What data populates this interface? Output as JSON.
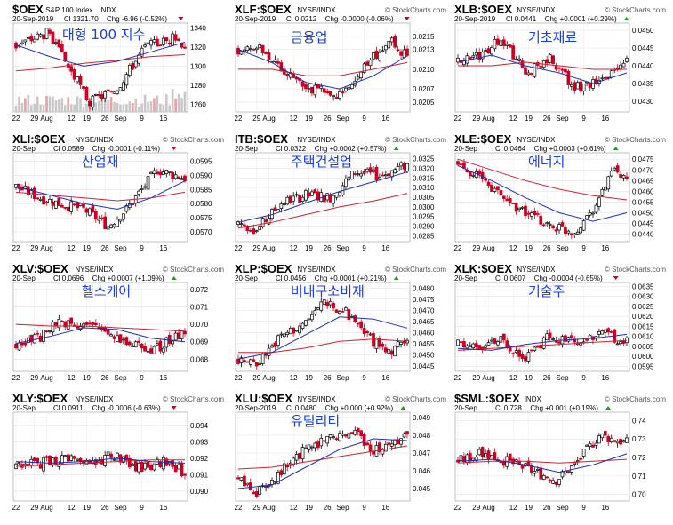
{
  "date": "20-Sep-2019",
  "date_short": "20-Sep",
  "watermark": "© StockCharts.com",
  "x_labels": [
    "22",
    "29",
    "Aug",
    "12",
    "19",
    "26",
    "Sep",
    "9",
    "16"
  ],
  "colors": {
    "up": "#000000",
    "down": "#cc0022",
    "ma_short": "#1f2fb0",
    "ma_long": "#cc2233",
    "vol": "#c8c8c8"
  },
  "chart_data": [
    {
      "type": "candlestick",
      "symbol": "$OEX",
      "desc": "S&P 100 Index",
      "exchange": "INDX",
      "korean": "대형 100 지수",
      "close_label": "Cl 1321.70",
      "chg_label": "Chg -6.96 (-0.52%)",
      "chg_up": false,
      "show_date_short": false,
      "show_volume": true,
      "yticks": [
        1260,
        1280,
        1300,
        1320,
        1340
      ],
      "ylim": [
        1252,
        1345
      ],
      "anchors": [
        [
          0,
          1322
        ],
        [
          10,
          1335
        ],
        [
          17,
          1300
        ],
        [
          24,
          1262
        ],
        [
          33,
          1278
        ],
        [
          42,
          1320
        ],
        [
          52,
          1330
        ],
        [
          55,
          1322
        ]
      ],
      "short_ma": [
        1322,
        1310,
        1300,
        1305,
        1315,
        1325
      ],
      "long_ma": [
        1295,
        1298,
        1303,
        1306,
        1310,
        1312
      ]
    },
    {
      "type": "candlestick",
      "symbol": "XLF:$OEX",
      "desc": "",
      "exchange": "NYSE/INDX",
      "korean": "금융업",
      "close_label": "Cl 0.0212",
      "chg_label": "Chg -0.0000 (-0.06%)",
      "chg_up": false,
      "show_date_short": false,
      "show_volume": false,
      "yticks": [
        0.0205,
        0.0207,
        0.021,
        0.0213,
        0.0215
      ],
      "ylim": [
        0.02035,
        0.0217
      ],
      "anchors": [
        [
          0,
          0.0213
        ],
        [
          8,
          0.0213
        ],
        [
          15,
          0.021
        ],
        [
          24,
          0.0207
        ],
        [
          33,
          0.0206
        ],
        [
          42,
          0.0211
        ],
        [
          50,
          0.0214
        ],
        [
          55,
          0.0212
        ]
      ],
      "short_ma": [
        0.0213,
        0.0211,
        0.0208,
        0.0207,
        0.0209,
        0.0212
      ],
      "long_ma": [
        0.021,
        0.021,
        0.0209,
        0.0209,
        0.021,
        0.0211
      ]
    },
    {
      "type": "candlestick",
      "symbol": "XLB:$OEX",
      "desc": "",
      "exchange": "NYSE/INDX",
      "korean": "기초재료",
      "close_label": "Cl 0.0441",
      "chg_label": "Chg +0.0001 (+0.29%)",
      "chg_up": true,
      "show_date_short": false,
      "show_volume": false,
      "yticks": [
        0.043,
        0.0435,
        0.044,
        0.0445,
        0.045
      ],
      "ylim": [
        0.0427,
        0.0452
      ],
      "anchors": [
        [
          0,
          0.0441
        ],
        [
          8,
          0.0443
        ],
        [
          14,
          0.0448
        ],
        [
          22,
          0.0438
        ],
        [
          30,
          0.0442
        ],
        [
          38,
          0.0434
        ],
        [
          46,
          0.0435
        ],
        [
          55,
          0.0441
        ]
      ],
      "short_ma": [
        0.0441,
        0.0443,
        0.044,
        0.0438,
        0.0435,
        0.0438
      ],
      "long_ma": [
        0.044,
        0.044,
        0.0441,
        0.044,
        0.0439,
        0.0439
      ]
    },
    {
      "type": "candlestick",
      "symbol": "XLI:$OEX",
      "desc": "",
      "exchange": "NYSE/INDX",
      "korean": "산업재",
      "close_label": "Cl 0.0589",
      "chg_label": "Chg -0.0001 (-0.11%)",
      "chg_up": false,
      "show_date_short": true,
      "show_volume": false,
      "yticks": [
        0.057,
        0.0575,
        0.058,
        0.0585,
        0.059,
        0.0595
      ],
      "ylim": [
        0.05665,
        0.0598
      ],
      "anchors": [
        [
          0,
          0.0586
        ],
        [
          8,
          0.0582
        ],
        [
          14,
          0.058
        ],
        [
          22,
          0.0578
        ],
        [
          30,
          0.0572
        ],
        [
          36,
          0.0578
        ],
        [
          46,
          0.0592
        ],
        [
          55,
          0.0589
        ]
      ],
      "short_ma": [
        0.0586,
        0.0583,
        0.058,
        0.0578,
        0.0582,
        0.0588
      ],
      "long_ma": [
        0.0584,
        0.0583,
        0.0582,
        0.0581,
        0.0582,
        0.0584
      ]
    },
    {
      "type": "candlestick",
      "symbol": "ITB:$OEX",
      "desc": "",
      "exchange": "NYSE/INDX",
      "korean": "주택건설업",
      "close_label": "Cl 0.0322",
      "chg_label": "Chg +0.0002 (+0.57%)",
      "chg_up": true,
      "show_date_short": true,
      "show_volume": false,
      "yticks": [
        0.0285,
        0.029,
        0.0295,
        0.03,
        0.0305,
        0.031,
        0.0315,
        0.032,
        0.0325
      ],
      "ylim": [
        0.0282,
        0.0328
      ],
      "anchors": [
        [
          0,
          0.0292
        ],
        [
          6,
          0.0288
        ],
        [
          14,
          0.0302
        ],
        [
          22,
          0.0306
        ],
        [
          30,
          0.0305
        ],
        [
          38,
          0.0318
        ],
        [
          46,
          0.0316
        ],
        [
          55,
          0.0322
        ]
      ],
      "short_ma": [
        0.0292,
        0.0296,
        0.0302,
        0.0308,
        0.0313,
        0.0318
      ],
      "long_ma": [
        0.0289,
        0.0292,
        0.0296,
        0.03,
        0.0303,
        0.0307
      ]
    },
    {
      "type": "candlestick",
      "symbol": "XLE:$OEX",
      "desc": "",
      "exchange": "NYSE/INDX",
      "korean": "에너지",
      "close_label": "Cl 0.0464",
      "chg_label": "Chg +0.0003 (+0.61%)",
      "chg_up": true,
      "show_date_short": true,
      "show_volume": false,
      "yticks": [
        0.044,
        0.0445,
        0.045,
        0.0455,
        0.046,
        0.0465,
        0.047,
        0.0475
      ],
      "ylim": [
        0.04365,
        0.0478
      ],
      "anchors": [
        [
          0,
          0.0473
        ],
        [
          6,
          0.0468
        ],
        [
          14,
          0.0458
        ],
        [
          22,
          0.045
        ],
        [
          30,
          0.0444
        ],
        [
          38,
          0.0441
        ],
        [
          46,
          0.0456
        ],
        [
          50,
          0.047
        ],
        [
          55,
          0.0464
        ]
      ],
      "short_ma": [
        0.0472,
        0.0465,
        0.0457,
        0.045,
        0.0446,
        0.045
      ],
      "long_ma": [
        0.0475,
        0.047,
        0.0465,
        0.0461,
        0.0458,
        0.0456
      ]
    },
    {
      "type": "candlestick",
      "symbol": "XLV:$OEX",
      "desc": "",
      "exchange": "NYSE/INDX",
      "korean": "헬스케어",
      "close_label": "Cl 0.0696",
      "chg_label": "Chg +0.0007 (+1.09%)",
      "chg_up": true,
      "show_date_short": true,
      "show_volume": false,
      "yticks": [
        0.068,
        0.069,
        0.07,
        0.071,
        0.072
      ],
      "ylim": [
        0.0673,
        0.0724
      ],
      "anchors": [
        [
          0,
          0.0688
        ],
        [
          8,
          0.0692
        ],
        [
          14,
          0.0702
        ],
        [
          22,
          0.07
        ],
        [
          30,
          0.0696
        ],
        [
          38,
          0.0688
        ],
        [
          46,
          0.0686
        ],
        [
          55,
          0.0696
        ]
      ],
      "short_ma": [
        0.0689,
        0.0693,
        0.0698,
        0.0697,
        0.0692,
        0.069
      ],
      "long_ma": [
        0.07,
        0.0699,
        0.0699,
        0.0698,
        0.0697,
        0.0696
      ]
    },
    {
      "type": "candlestick",
      "symbol": "XLP:$OEX",
      "desc": "",
      "exchange": "NYSE/INDX",
      "korean": "비내구소비재",
      "close_label": "Cl 0.0456",
      "chg_label": "Chg +0.0001 (+0.21%)",
      "chg_up": true,
      "show_date_short": true,
      "show_volume": false,
      "yticks": [
        0.0445,
        0.045,
        0.0455,
        0.046,
        0.0465,
        0.047,
        0.0475,
        0.048
      ],
      "ylim": [
        0.04425,
        0.04825
      ],
      "anchors": [
        [
          0,
          0.0448
        ],
        [
          6,
          0.0446
        ],
        [
          14,
          0.0458
        ],
        [
          22,
          0.0464
        ],
        [
          28,
          0.0474
        ],
        [
          36,
          0.0468
        ],
        [
          44,
          0.0456
        ],
        [
          50,
          0.0452
        ],
        [
          55,
          0.0456
        ]
      ],
      "short_ma": [
        0.0448,
        0.0451,
        0.0459,
        0.0467,
        0.0466,
        0.0462
      ],
      "long_ma": [
        0.0451,
        0.0451,
        0.0453,
        0.0456,
        0.0457,
        0.0456
      ]
    },
    {
      "type": "candlestick",
      "symbol": "XLK:$OEX",
      "desc": "",
      "exchange": "NYSE/INDX",
      "korean": "기술주",
      "close_label": "Cl 0.0607",
      "chg_label": "Chg -0.0004 (-0.65%)",
      "chg_up": false,
      "show_date_short": true,
      "show_volume": false,
      "yticks": [
        0.0595,
        0.06,
        0.0605,
        0.061,
        0.0615,
        0.062,
        0.0625,
        0.063,
        0.0635
      ],
      "ylim": [
        0.05925,
        0.0637
      ],
      "anchors": [
        [
          0,
          0.0606
        ],
        [
          8,
          0.0604
        ],
        [
          14,
          0.0608
        ],
        [
          22,
          0.06
        ],
        [
          30,
          0.061
        ],
        [
          38,
          0.0607
        ],
        [
          46,
          0.0612
        ],
        [
          55,
          0.0607
        ]
      ],
      "short_ma": [
        0.0604,
        0.0603,
        0.0606,
        0.0608,
        0.0609,
        0.0611
      ],
      "long_ma": [
        0.0603,
        0.0604,
        0.0605,
        0.0606,
        0.0607,
        0.0608
      ]
    },
    {
      "type": "candlestick",
      "symbol": "XLY:$OEX",
      "desc": "",
      "exchange": "NYSE/INDX",
      "korean": "",
      "close_label": "Cl 0.0911",
      "chg_label": "Chg -0.0006 (-0.63%)",
      "chg_up": false,
      "show_date_short": true,
      "show_volume": false,
      "yticks": [
        0.09,
        0.091,
        0.092,
        0.093,
        0.094
      ],
      "ylim": [
        0.0894,
        0.0948
      ],
      "anchors": [
        [
          0,
          0.0915
        ],
        [
          8,
          0.0917
        ],
        [
          16,
          0.092
        ],
        [
          24,
          0.0917
        ],
        [
          32,
          0.0922
        ],
        [
          40,
          0.0914
        ],
        [
          48,
          0.0918
        ],
        [
          55,
          0.0911
        ]
      ],
      "short_ma": [
        0.0918,
        0.0917,
        0.0918,
        0.092,
        0.0918,
        0.0917
      ],
      "long_ma": [
        0.0915,
        0.0916,
        0.0917,
        0.0918,
        0.0919,
        0.0919
      ]
    },
    {
      "type": "candlestick",
      "symbol": "XLU:$OEX",
      "desc": "",
      "exchange": "NYSE/INDX",
      "korean": "유틸리티",
      "close_label": "Cl 0.0480",
      "chg_label": "Chg +0.000 (+0.92%)",
      "chg_up": true,
      "show_date_short": false,
      "show_volume": false,
      "yticks": [
        0.045,
        0.046,
        0.047,
        0.048,
        0.049
      ],
      "ylim": [
        0.0443,
        0.0493
      ],
      "anchors": [
        [
          0,
          0.0455
        ],
        [
          6,
          0.0448
        ],
        [
          14,
          0.046
        ],
        [
          22,
          0.0472
        ],
        [
          30,
          0.048
        ],
        [
          38,
          0.0482
        ],
        [
          44,
          0.0472
        ],
        [
          50,
          0.0474
        ],
        [
          55,
          0.048
        ]
      ],
      "short_ma": [
        0.045,
        0.0452,
        0.0462,
        0.0472,
        0.0478,
        0.0477
      ],
      "long_ma": [
        0.0461,
        0.0462,
        0.0465,
        0.0468,
        0.0471,
        0.0474
      ]
    },
    {
      "type": "candlestick",
      "symbol": "$SML:$OEX",
      "desc": "",
      "exchange": "INDX",
      "korean": "",
      "close_label": "Cl 0.728",
      "chg_label": "Chg +0.001 (+0.19%)",
      "chg_up": true,
      "show_date_short": true,
      "show_volume": false,
      "yticks": [
        0.7,
        0.71,
        0.72,
        0.73,
        0.74
      ],
      "ylim": [
        0.6965,
        0.7445
      ],
      "anchors": [
        [
          0,
          0.718
        ],
        [
          8,
          0.722
        ],
        [
          16,
          0.718
        ],
        [
          24,
          0.713
        ],
        [
          32,
          0.708
        ],
        [
          38,
          0.716
        ],
        [
          46,
          0.732
        ],
        [
          55,
          0.728
        ]
      ],
      "short_ma": [
        0.718,
        0.719,
        0.716,
        0.712,
        0.716,
        0.722
      ],
      "long_ma": [
        0.717,
        0.718,
        0.718,
        0.717,
        0.718,
        0.719
      ]
    }
  ]
}
